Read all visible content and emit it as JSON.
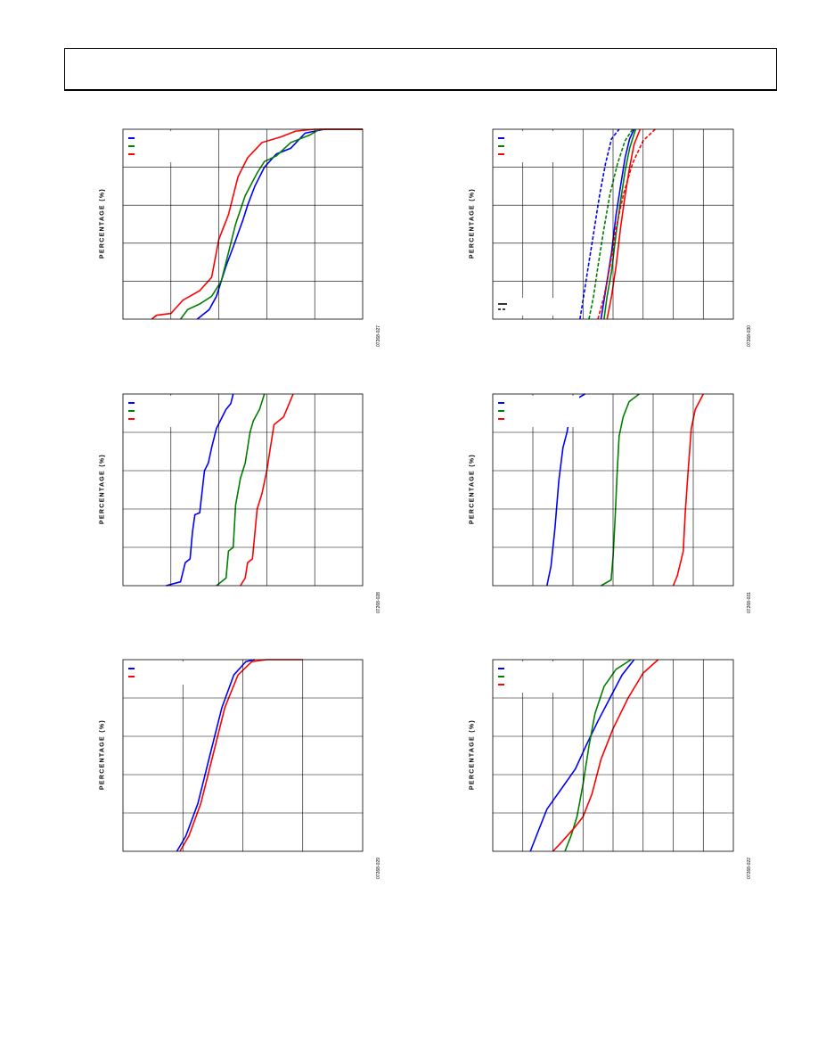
{
  "header": {
    "title": ""
  },
  "colors": {
    "blue": "#0000ff",
    "green": "#008000",
    "red": "#ff0000",
    "black": "#000000",
    "grid": "#000000"
  },
  "chart_data": [
    {
      "id": "c1",
      "type": "line",
      "ylabel": "PERCENTAGE (%)",
      "figure_code": "07268-027",
      "grid": true,
      "xdiv": 5,
      "ydiv": 5,
      "xlim": [
        0,
        5
      ],
      "ylim": [
        0,
        100
      ],
      "legend_placement": "top-left",
      "series": [
        {
          "color": "blue",
          "dash": false,
          "points": [
            [
              1.55,
              0
            ],
            [
              1.8,
              5
            ],
            [
              1.95,
              12
            ],
            [
              2.05,
              20
            ],
            [
              2.15,
              28
            ],
            [
              2.3,
              38
            ],
            [
              2.5,
              52
            ],
            [
              2.6,
              60
            ],
            [
              2.75,
              70
            ],
            [
              2.95,
              80
            ],
            [
              3.2,
              87
            ],
            [
              3.5,
              90
            ],
            [
              3.8,
              98
            ],
            [
              4.2,
              100
            ],
            [
              5,
              100
            ]
          ]
        },
        {
          "color": "green",
          "dash": false,
          "points": [
            [
              1.2,
              0
            ],
            [
              1.35,
              5
            ],
            [
              1.6,
              8
            ],
            [
              1.85,
              12
            ],
            [
              2.05,
              20
            ],
            [
              2.2,
              35
            ],
            [
              2.35,
              50
            ],
            [
              2.55,
              65
            ],
            [
              2.8,
              77
            ],
            [
              2.95,
              83
            ],
            [
              3.2,
              86
            ],
            [
              3.5,
              93
            ],
            [
              3.9,
              97
            ],
            [
              4.1,
              100
            ],
            [
              5,
              100
            ]
          ]
        },
        {
          "color": "red",
          "dash": false,
          "points": [
            [
              0.6,
              0
            ],
            [
              0.7,
              2
            ],
            [
              1.0,
              3
            ],
            [
              1.25,
              10
            ],
            [
              1.6,
              15
            ],
            [
              1.85,
              22
            ],
            [
              2.0,
              42
            ],
            [
              2.2,
              55
            ],
            [
              2.4,
              75
            ],
            [
              2.6,
              85
            ],
            [
              2.9,
              93
            ],
            [
              3.3,
              96
            ],
            [
              3.6,
              99
            ],
            [
              4.0,
              100
            ],
            [
              5,
              100
            ]
          ]
        }
      ]
    },
    {
      "id": "c2",
      "type": "line",
      "ylabel": "PERCENTAGE (%)",
      "figure_code": "07268-030",
      "grid": true,
      "xdiv": 8,
      "ydiv": 5,
      "xlim": [
        0,
        8
      ],
      "ylim": [
        0,
        100
      ],
      "legend_placement": "top-left",
      "series": [
        {
          "color": "blue",
          "dash": false,
          "points": [
            [
              3.6,
              0
            ],
            [
              3.7,
              10
            ],
            [
              3.8,
              20
            ],
            [
              3.95,
              35
            ],
            [
              4.1,
              55
            ],
            [
              4.25,
              70
            ],
            [
              4.4,
              85
            ],
            [
              4.55,
              95
            ],
            [
              4.7,
              100
            ]
          ]
        },
        {
          "color": "green",
          "dash": false,
          "points": [
            [
              3.7,
              0
            ],
            [
              3.8,
              12
            ],
            [
              3.95,
              25
            ],
            [
              4.1,
              45
            ],
            [
              4.25,
              62
            ],
            [
              4.4,
              78
            ],
            [
              4.55,
              90
            ],
            [
              4.75,
              100
            ]
          ]
        },
        {
          "color": "red",
          "dash": false,
          "points": [
            [
              3.8,
              0
            ],
            [
              3.95,
              12
            ],
            [
              4.1,
              28
            ],
            [
              4.25,
              48
            ],
            [
              4.4,
              65
            ],
            [
              4.55,
              80
            ],
            [
              4.7,
              92
            ],
            [
              4.9,
              100
            ]
          ]
        },
        {
          "color": "blue",
          "dash": true,
          "points": [
            [
              2.9,
              0
            ],
            [
              3.0,
              10
            ],
            [
              3.15,
              25
            ],
            [
              3.35,
              45
            ],
            [
              3.55,
              65
            ],
            [
              3.75,
              82
            ],
            [
              3.95,
              95
            ],
            [
              4.2,
              100
            ]
          ]
        },
        {
          "color": "green",
          "dash": true,
          "points": [
            [
              3.2,
              0
            ],
            [
              3.35,
              12
            ],
            [
              3.5,
              28
            ],
            [
              3.7,
              48
            ],
            [
              3.9,
              66
            ],
            [
              4.15,
              82
            ],
            [
              4.4,
              94
            ],
            [
              4.65,
              100
            ]
          ]
        },
        {
          "color": "red",
          "dash": true,
          "points": [
            [
              3.5,
              0
            ],
            [
              3.7,
              12
            ],
            [
              3.9,
              28
            ],
            [
              4.1,
              48
            ],
            [
              4.35,
              66
            ],
            [
              4.65,
              82
            ],
            [
              5.0,
              94
            ],
            [
              5.4,
              100
            ]
          ]
        }
      ]
    },
    {
      "id": "c3",
      "type": "line",
      "ylabel": "PERCENTAGE (%)",
      "figure_code": "07268-028",
      "grid": true,
      "xdiv": 5,
      "ydiv": 5,
      "xlim": [
        0,
        5
      ],
      "ylim": [
        0,
        100
      ],
      "legend_placement": "top-left",
      "series": [
        {
          "color": "blue",
          "dash": false,
          "points": [
            [
              0.9,
              0
            ],
            [
              1.2,
              2
            ],
            [
              1.3,
              12
            ],
            [
              1.4,
              14
            ],
            [
              1.45,
              28
            ],
            [
              1.5,
              37
            ],
            [
              1.6,
              38
            ],
            [
              1.7,
              60
            ],
            [
              1.78,
              64
            ],
            [
              1.85,
              72
            ],
            [
              1.95,
              82
            ],
            [
              2.05,
              87
            ],
            [
              2.15,
              92
            ],
            [
              2.25,
              95
            ],
            [
              2.3,
              100
            ]
          ]
        },
        {
          "color": "green",
          "dash": false,
          "points": [
            [
              1.95,
              0
            ],
            [
              2.15,
              4
            ],
            [
              2.2,
              18
            ],
            [
              2.3,
              20
            ],
            [
              2.35,
              42
            ],
            [
              2.45,
              56
            ],
            [
              2.55,
              64
            ],
            [
              2.65,
              80
            ],
            [
              2.72,
              86
            ],
            [
              2.85,
              92
            ],
            [
              2.95,
              100
            ]
          ]
        },
        {
          "color": "red",
          "dash": false,
          "points": [
            [
              2.45,
              0
            ],
            [
              2.55,
              4
            ],
            [
              2.6,
              12
            ],
            [
              2.7,
              14
            ],
            [
              2.8,
              40
            ],
            [
              2.9,
              48
            ],
            [
              3.0,
              60
            ],
            [
              3.15,
              84
            ],
            [
              3.35,
              88
            ],
            [
              3.45,
              94
            ],
            [
              3.55,
              100
            ]
          ]
        }
      ]
    },
    {
      "id": "c4",
      "type": "line",
      "ylabel": "PERCENTAGE (%)",
      "figure_code": "07268-031",
      "grid": true,
      "xdiv": 6,
      "ydiv": 5,
      "xlim": [
        0,
        6
      ],
      "ylim": [
        0,
        100
      ],
      "legend_placement": "top-left",
      "series": [
        {
          "color": "blue",
          "dash": false,
          "points": [
            [
              1.35,
              0
            ],
            [
              1.45,
              10
            ],
            [
              1.55,
              30
            ],
            [
              1.65,
              55
            ],
            [
              1.75,
              72
            ],
            [
              1.85,
              80
            ],
            [
              1.95,
              92
            ],
            [
              2.05,
              97
            ],
            [
              2.3,
              100
            ]
          ]
        },
        {
          "color": "green",
          "dash": false,
          "points": [
            [
              2.7,
              0
            ],
            [
              2.95,
              3
            ],
            [
              3.0,
              15
            ],
            [
              3.05,
              35
            ],
            [
              3.1,
              58
            ],
            [
              3.15,
              78
            ],
            [
              3.25,
              88
            ],
            [
              3.4,
              96
            ],
            [
              3.65,
              100
            ]
          ]
        },
        {
          "color": "red",
          "dash": false,
          "points": [
            [
              4.5,
              0
            ],
            [
              4.6,
              5
            ],
            [
              4.75,
              18
            ],
            [
              4.8,
              38
            ],
            [
              4.88,
              62
            ],
            [
              4.95,
              82
            ],
            [
              5.05,
              92
            ],
            [
              5.15,
              96
            ],
            [
              5.25,
              100
            ]
          ]
        }
      ]
    },
    {
      "id": "c5",
      "type": "line",
      "ylabel": "PERCENTAGE (%)",
      "figure_code": "07268-029",
      "grid": true,
      "xdiv": 4,
      "ydiv": 5,
      "xlim": [
        0,
        4
      ],
      "ylim": [
        0,
        100
      ],
      "legend_placement": "top-left",
      "series": [
        {
          "color": "blue",
          "dash": false,
          "points": [
            [
              0.9,
              0
            ],
            [
              1.05,
              8
            ],
            [
              1.25,
              25
            ],
            [
              1.45,
              50
            ],
            [
              1.65,
              75
            ],
            [
              1.85,
              92
            ],
            [
              2.05,
              99
            ],
            [
              2.2,
              100
            ]
          ]
        },
        {
          "color": "red",
          "dash": false,
          "points": [
            [
              0.95,
              0
            ],
            [
              1.1,
              8
            ],
            [
              1.3,
              25
            ],
            [
              1.5,
              50
            ],
            [
              1.7,
              75
            ],
            [
              1.92,
              92
            ],
            [
              2.15,
              99
            ],
            [
              2.4,
              100
            ],
            [
              3.0,
              100
            ]
          ]
        }
      ]
    },
    {
      "id": "c6",
      "type": "line",
      "ylabel": "PERCENTAGE (%)",
      "figure_code": "07268-022",
      "grid": true,
      "xdiv": 8,
      "ydiv": 5,
      "xlim": [
        0,
        8
      ],
      "ylim": [
        0,
        100
      ],
      "legend_placement": "top-left",
      "series": [
        {
          "color": "blue",
          "dash": false,
          "points": [
            [
              1.25,
              0
            ],
            [
              1.5,
              10
            ],
            [
              1.8,
              22
            ],
            [
              2.3,
              33
            ],
            [
              2.75,
              43
            ],
            [
              3.1,
              55
            ],
            [
              3.5,
              68
            ],
            [
              3.9,
              80
            ],
            [
              4.3,
              92
            ],
            [
              4.7,
              100
            ]
          ]
        },
        {
          "color": "green",
          "dash": false,
          "points": [
            [
              2.4,
              0
            ],
            [
              2.6,
              8
            ],
            [
              2.8,
              18
            ],
            [
              3.0,
              35
            ],
            [
              3.2,
              55
            ],
            [
              3.4,
              72
            ],
            [
              3.7,
              86
            ],
            [
              4.1,
              95
            ],
            [
              4.6,
              100
            ]
          ]
        },
        {
          "color": "red",
          "dash": false,
          "points": [
            [
              2.0,
              0
            ],
            [
              2.3,
              5
            ],
            [
              2.7,
              12
            ],
            [
              3.0,
              18
            ],
            [
              3.3,
              30
            ],
            [
              3.6,
              48
            ],
            [
              4.0,
              64
            ],
            [
              4.5,
              80
            ],
            [
              5.0,
              93
            ],
            [
              5.5,
              100
            ]
          ]
        }
      ]
    }
  ]
}
